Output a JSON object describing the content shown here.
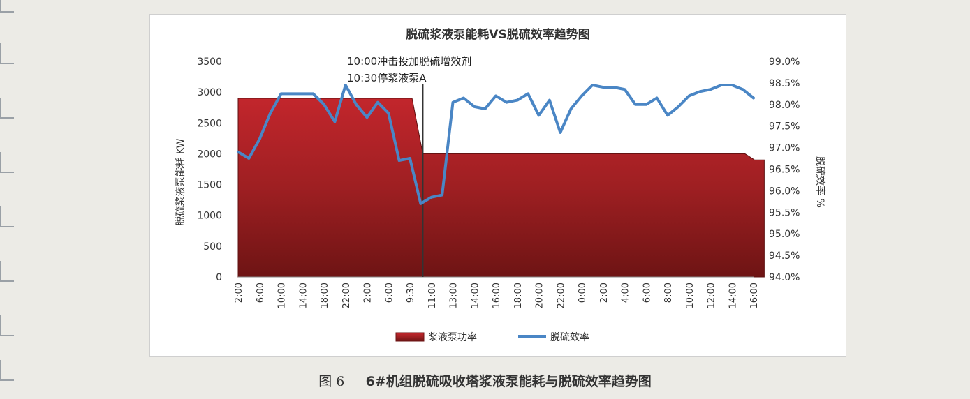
{
  "figure": {
    "label": "图 6",
    "caption": "6#机组脱硫吸收塔浆液泵能耗与脱硫效率趋势图"
  },
  "chart_data": {
    "type": "area+line",
    "title": "脱硫浆液泵能耗VS脱硫效率趋势图",
    "ylabel_left": "脱硫浆液泵能耗 KW",
    "ylabel_right": "脱硫效率 %",
    "y_left_ticks": [
      "3500",
      "3000",
      "2500",
      "2000",
      "1500",
      "1000",
      "500",
      "0"
    ],
    "y_right_ticks": [
      "99.0%",
      "98.5%",
      "98.0%",
      "97.5%",
      "97.0%",
      "96.5%",
      "96.0%",
      "95.5%",
      "95.0%",
      "94.5%",
      "94.0%"
    ],
    "ylim_left": [
      0,
      3500
    ],
    "ylim_right": [
      94.0,
      99.0
    ],
    "x_tick_labels": [
      "2:00",
      "6:00",
      "10:00",
      "14:00",
      "18:00",
      "22:00",
      "2:00",
      "6:00",
      "9:30",
      "11:00",
      "13:00",
      "14:00",
      "16:00",
      "18:00",
      "20:00",
      "22:00",
      "0:00",
      "2:00",
      "4:00",
      "6:00",
      "8:00",
      "10:00",
      "12:00",
      "14:00",
      "16:00"
    ],
    "annotations": [
      "10:00冲击投加脱硫增效剂",
      "10:30停浆液泵A"
    ],
    "event_index": 17.2,
    "colors": {
      "area": "#9e1f22",
      "line": "#4a86c5",
      "event_line": "#333333"
    },
    "legend_position": "bottom",
    "series": [
      {
        "name": "浆液泵功率",
        "kind": "area",
        "axis": "left",
        "x": [
          0,
          16.2,
          17.2,
          47.2,
          48.1,
          49
        ],
        "values": [
          2900,
          2900,
          2000,
          2000,
          1900,
          1900
        ]
      },
      {
        "name": "脱硫效率",
        "kind": "line",
        "axis": "right",
        "values": [
          96.9,
          96.75,
          97.2,
          97.8,
          98.25,
          98.25,
          98.25,
          98.25,
          98.0,
          97.6,
          98.45,
          98.0,
          97.7,
          98.05,
          97.8,
          96.7,
          96.75,
          95.7,
          95.85,
          95.9,
          98.05,
          98.15,
          97.95,
          97.9,
          98.2,
          98.05,
          98.1,
          98.25,
          97.75,
          98.1,
          97.35,
          97.9,
          98.2,
          98.45,
          98.4,
          98.4,
          98.35,
          98.0,
          98.0,
          98.15,
          97.75,
          97.95,
          98.2,
          98.3,
          98.35,
          98.45,
          98.45,
          98.35,
          98.15
        ]
      }
    ]
  }
}
